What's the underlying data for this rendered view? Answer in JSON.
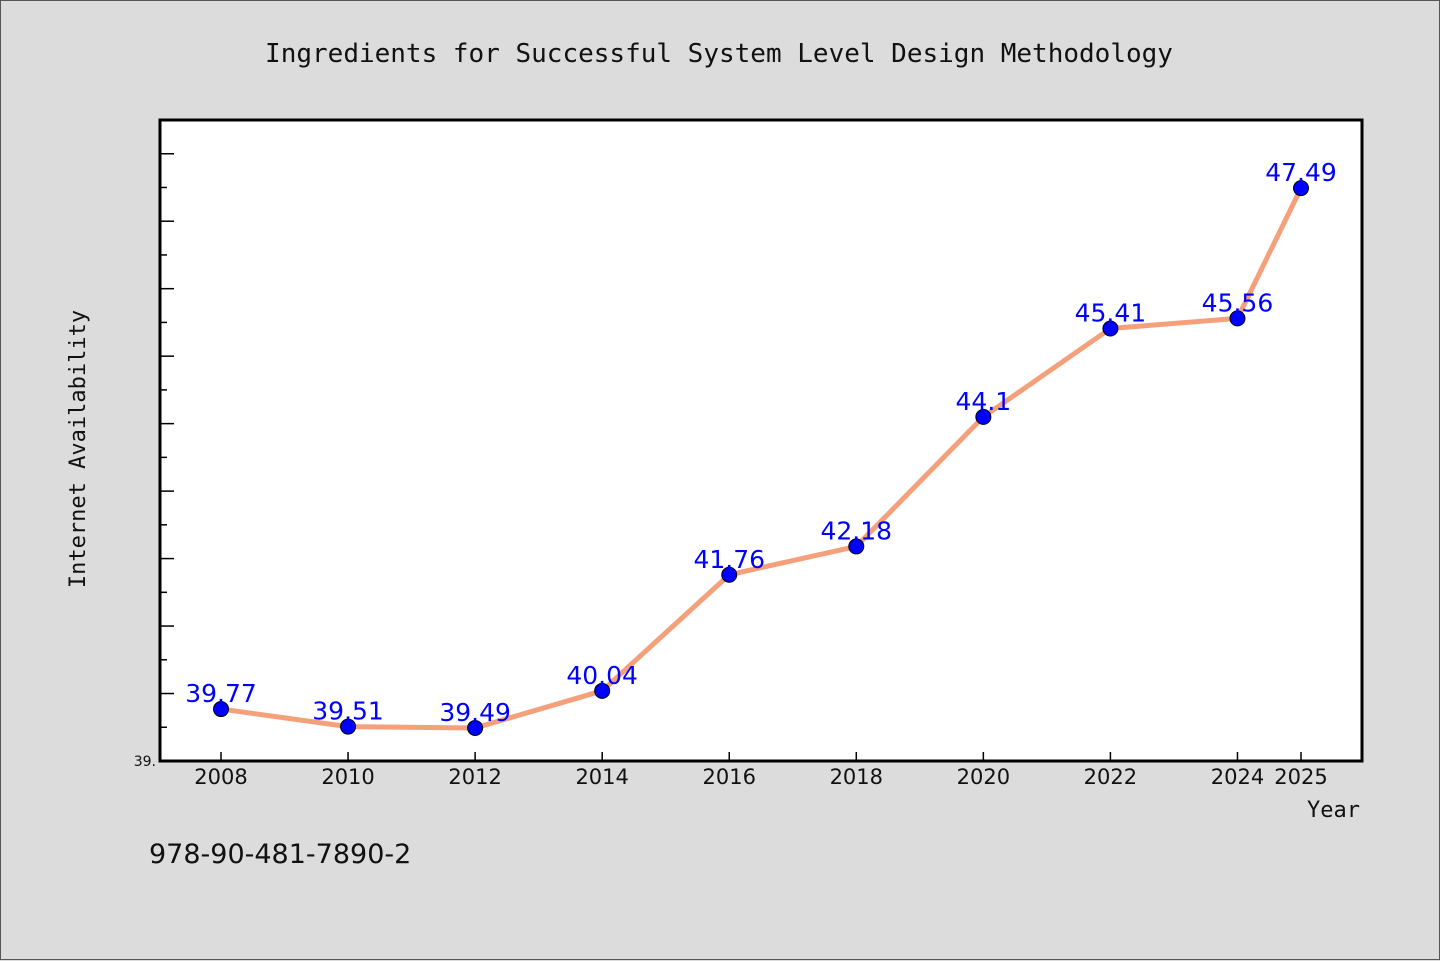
{
  "chart_data": {
    "type": "line",
    "title": "Ingredients for Successful System Level Design Methodology",
    "xlabel": "Year",
    "ylabel": "Internet Availability",
    "categories": [
      "2008",
      "2010",
      "2012",
      "2014",
      "2016",
      "2018",
      "2020",
      "2022",
      "2024",
      "2025"
    ],
    "series": [
      {
        "values": [
          39.77,
          39.51,
          39.49,
          40.04,
          41.76,
          42.18,
          44.1,
          45.41,
          45.56,
          47.49
        ],
        "labels": [
          "39.77",
          "39.51",
          "39.49",
          "40.04",
          "41.76",
          "42.18",
          "44.1",
          "45.41",
          "45.56",
          "47.49"
        ]
      }
    ],
    "ylim": [
      39.0,
      48.5
    ],
    "y_min_label": "39.",
    "grid": false,
    "legend": "none",
    "line_color": "#f4a07a",
    "marker_color": "#0000ff",
    "label_color": "#0000ff",
    "plot_background": "#ffffff",
    "page_background": "#dcdcdc"
  },
  "footer": {
    "isbn": "978-90-481-7890-2"
  }
}
